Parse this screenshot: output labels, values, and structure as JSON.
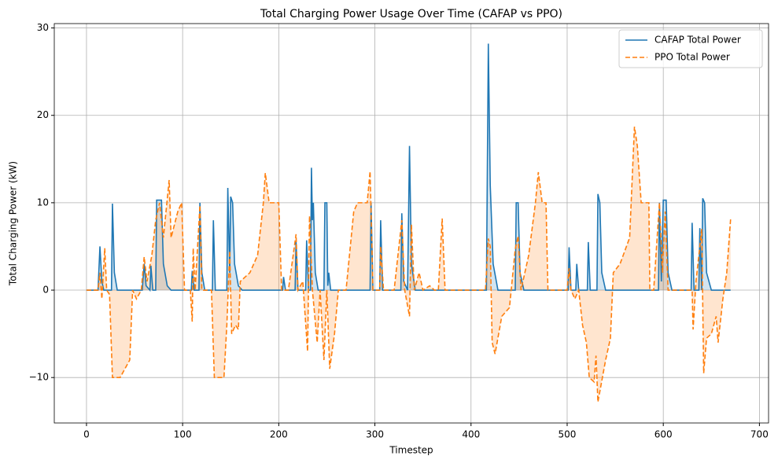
{
  "chart_data": {
    "type": "line",
    "title": "Total Charging Power Usage Over Time (CAFAP vs PPO)",
    "x_label": "Timestep",
    "y_label": "Total Charging Power (kW)",
    "xlim": [
      -33.5,
      709.5
    ],
    "ylim": [
      -15.2,
      30.5
    ],
    "xticks": [
      0,
      100,
      200,
      300,
      400,
      500,
      600,
      700
    ],
    "yticks": [
      {
        "value": -10,
        "label": "−10"
      },
      0,
      10,
      20,
      30
    ],
    "grid": true,
    "legend": "upper right",
    "series": [
      {
        "name": "CAFAP Total Power",
        "color": "#1f77b4",
        "dash": false,
        "x": [
          0,
          12,
          14,
          16,
          18,
          26,
          27,
          29,
          32,
          58,
          60,
          62,
          66,
          67,
          69,
          72,
          73,
          78,
          80,
          84,
          88,
          109,
          110,
          112,
          117,
          118,
          120,
          123,
          131,
          132,
          134,
          146,
          147,
          149,
          150,
          152,
          154,
          158,
          162,
          204,
          205,
          207,
          217,
          218,
          220,
          228,
          229,
          231,
          233,
          234,
          235,
          236,
          238,
          241,
          247,
          248,
          250,
          251,
          252,
          254,
          295,
          296,
          298,
          305,
          306,
          308,
          327,
          328,
          330,
          334,
          336,
          338,
          342,
          416,
          418,
          420,
          423,
          428,
          446,
          447,
          449,
          451,
          455,
          501,
          502,
          504,
          509,
          510,
          512,
          521,
          522,
          524,
          531,
          532,
          534,
          536,
          540,
          595,
          596,
          598,
          600,
          603,
          605,
          609,
          629,
          630,
          632,
          637,
          638,
          640,
          641,
          643,
          645,
          650,
          670
        ],
        "values": [
          0,
          0,
          5,
          1,
          0,
          0,
          9.9,
          2,
          0,
          0,
          3,
          0.5,
          0,
          2.8,
          0,
          0,
          10.3,
          10.3,
          3,
          0.5,
          0,
          0,
          2.2,
          0,
          0,
          10,
          2,
          0,
          0,
          8,
          0,
          0,
          11.7,
          2,
          10.7,
          10,
          3,
          0.5,
          0,
          0,
          1.5,
          0,
          0,
          5.5,
          0,
          0,
          5.7,
          0,
          0,
          14,
          8,
          10,
          2,
          0,
          0,
          10,
          10,
          0.5,
          2,
          0,
          0,
          10,
          0,
          0,
          8,
          0,
          0,
          8.8,
          1,
          0,
          16.5,
          3,
          0,
          0,
          28.2,
          12,
          3,
          0,
          0,
          10,
          10,
          2,
          0,
          0,
          4.9,
          0,
          0,
          3,
          0,
          0,
          5.5,
          0,
          0,
          11,
          10,
          2,
          0,
          0,
          10,
          1,
          10.3,
          10.3,
          2,
          0,
          0,
          7.7,
          0,
          0,
          7.1,
          0,
          10.5,
          10,
          2,
          0,
          0
        ]
      },
      {
        "name": "PPO Total Power",
        "color": "#ff7f0e",
        "dash": true,
        "x": [
          0,
          12,
          14,
          16,
          19,
          21,
          24,
          27,
          35,
          45,
          48,
          52,
          57,
          60,
          63,
          68,
          72,
          76,
          80,
          86,
          88,
          95,
          99,
          102,
          108,
          110,
          111,
          113,
          118,
          120,
          130,
          133,
          143,
          146,
          149,
          151,
          155,
          158,
          160,
          170,
          178,
          184,
          186,
          190,
          200,
          203,
          210,
          218,
          220,
          225,
          230,
          232,
          235,
          240,
          243,
          247,
          250,
          253,
          258,
          262,
          270,
          278,
          282,
          292,
          295,
          298,
          305,
          306,
          309,
          320,
          328,
          331,
          336,
          338,
          341,
          346,
          350,
          357,
          362,
          366,
          370,
          373,
          380,
          415,
          418,
          420,
          422,
          425,
          432,
          440,
          446,
          449,
          452,
          460,
          467,
          470,
          474,
          478,
          480,
          500,
          502,
          504,
          508,
          512,
          516,
          520,
          523,
          528,
          530,
          532,
          540,
          545,
          548,
          555,
          565,
          570,
          573,
          577,
          585,
          586,
          590,
          596,
          599,
          602,
          605,
          610,
          630,
          631,
          634,
          640,
          642,
          645,
          650,
          655,
          657,
          662,
          666,
          670
        ],
        "values": [
          0,
          0,
          2,
          -1,
          4.8,
          0,
          -0.5,
          -10,
          -10,
          -8,
          0,
          -1,
          0,
          3.8,
          1,
          4,
          8,
          10,
          6,
          12.6,
          6,
          9,
          10,
          0,
          0,
          -3.6,
          4.8,
          0,
          9.7,
          0,
          0,
          -10,
          -10,
          -4,
          4.5,
          -5,
          -4,
          -4.5,
          1,
          2,
          4,
          10,
          13.4,
          10,
          10,
          0,
          0,
          6.4,
          0,
          1,
          -7,
          8.5,
          0,
          -6,
          0,
          -8,
          0,
          -9,
          -5,
          0,
          0,
          9,
          10,
          10,
          13.6,
          0,
          0,
          5,
          0,
          0,
          8,
          0,
          -3,
          7.5,
          0,
          2,
          0,
          0.5,
          0,
          0,
          8.2,
          0,
          0,
          0,
          5.9,
          5,
          -6,
          -7.3,
          -3,
          -2,
          4.7,
          6.2,
          0,
          4,
          10,
          13.5,
          10,
          10,
          0,
          0,
          2.5,
          0,
          -1,
          0,
          -4,
          -6,
          -10,
          -10.5,
          -7.5,
          -12.8,
          -8,
          -5.5,
          2,
          3,
          6,
          18.7,
          16.5,
          10,
          10,
          0,
          0,
          10,
          2,
          9,
          0,
          0,
          0,
          -4.5,
          1,
          7,
          -9.5,
          -5.5,
          -5,
          -3,
          -6,
          -1,
          2,
          8.1
        ]
      }
    ]
  }
}
